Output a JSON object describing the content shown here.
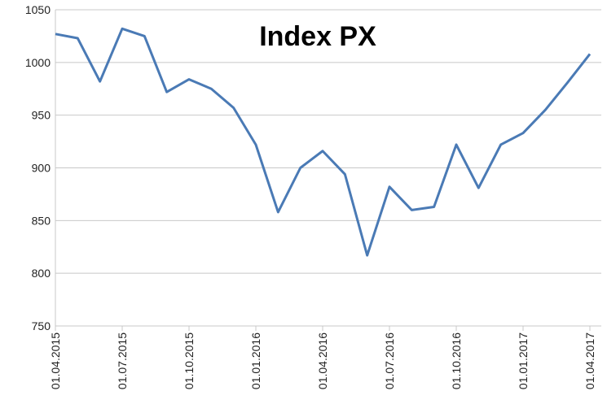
{
  "chart_data": {
    "type": "line",
    "title": "Index PX",
    "categories": [
      "01.04.2015",
      null,
      null,
      "01.07.2015",
      null,
      null,
      "01.10.2015",
      null,
      null,
      "01.01.2016",
      null,
      null,
      "01.04.2016",
      null,
      null,
      "01.07.2016",
      null,
      null,
      "01.10.2016",
      null,
      null,
      "01.01.2017",
      null,
      null,
      "01.04.2017"
    ],
    "series": [
      {
        "name": "Index PX",
        "color": "#4a7ab5",
        "values": [
          1027,
          1023,
          982,
          1032,
          1025,
          972,
          984,
          975,
          957,
          922,
          858,
          900,
          916,
          894,
          817,
          882,
          860,
          863,
          922,
          881,
          922,
          933,
          955,
          981,
          1008
        ]
      }
    ],
    "ylim": [
      750,
      1050
    ],
    "yticks": [
      750,
      800,
      850,
      900,
      950,
      1000,
      1050
    ],
    "grid": true
  }
}
